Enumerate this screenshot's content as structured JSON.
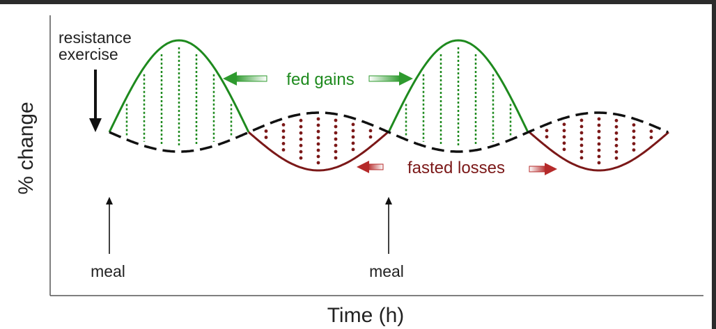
{
  "labels": {
    "y_axis": "% change",
    "x_axis": "Time (h)",
    "exercise_line1": "resistance",
    "exercise_line2": "exercise",
    "fed": "fed gains",
    "fasted": "fasted losses",
    "meal_1": "meal",
    "meal_2": "meal"
  },
  "colors": {
    "fed": "#1e8a1e",
    "fasted": "#7b1818",
    "baseline": "#111111",
    "text": "#222222"
  }
}
